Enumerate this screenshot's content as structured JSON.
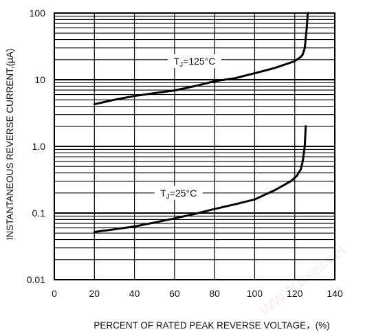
{
  "chart_data": {
    "type": "line",
    "title": "",
    "xlabel": "PERCENT OF RATED PEAK REVERSE VOLTAGE，(%)",
    "ylabel": "INSTANTANEOUS REVERSE CURRENT,(μA)",
    "xlim": [
      0,
      140
    ],
    "ylim": [
      0.01,
      100
    ],
    "yscale": "log",
    "grid": true,
    "x_ticks": [
      {
        "value": 0,
        "label": "0"
      },
      {
        "value": 20,
        "label": "20"
      },
      {
        "value": 40,
        "label": "40"
      },
      {
        "value": 60,
        "label": "60"
      },
      {
        "value": 80,
        "label": "80"
      },
      {
        "value": 100,
        "label": "100"
      },
      {
        "value": 120,
        "label": "120"
      },
      {
        "value": 140,
        "label": "140"
      }
    ],
    "y_ticks": [
      {
        "value": 100,
        "label": "100"
      },
      {
        "value": 10,
        "label": "10"
      },
      {
        "value": 1,
        "label": "1.0"
      },
      {
        "value": 0.1,
        "label": "0.1"
      },
      {
        "value": 0.01,
        "label": "0.01"
      }
    ],
    "series": [
      {
        "name": "Tj=125°C",
        "label_parts": {
          "main": "T",
          "sub": "J",
          "rest": "=125°C"
        },
        "label_at": [
          70,
          19
        ],
        "x": [
          20,
          30,
          40,
          50,
          60,
          70,
          80,
          90,
          100,
          110,
          120,
          123,
          124,
          125,
          126,
          126.5
        ],
        "y": [
          4.3,
          5.0,
          5.7,
          6.3,
          6.9,
          8.0,
          9.5,
          10.5,
          12.5,
          15.0,
          19.0,
          22.0,
          24.0,
          30.0,
          60.0,
          100.0
        ]
      },
      {
        "name": "Tj=25°C",
        "label_parts": {
          "main": "T",
          "sub": "J",
          "rest": "=25°C"
        },
        "label_at": [
          62,
          0.2
        ],
        "x": [
          20,
          30,
          40,
          50,
          60,
          70,
          80,
          90,
          100,
          110,
          118,
          121,
          123,
          124,
          125,
          125.5
        ],
        "y": [
          0.052,
          0.057,
          0.063,
          0.072,
          0.083,
          0.097,
          0.115,
          0.135,
          0.16,
          0.22,
          0.3,
          0.36,
          0.45,
          0.6,
          1.0,
          2.0
        ]
      }
    ],
    "line_color": "#000000",
    "grid_color": "#000000"
  },
  "watermark": {
    "text": "WWW.tbrist.net",
    "color": "#e04b4b"
  }
}
